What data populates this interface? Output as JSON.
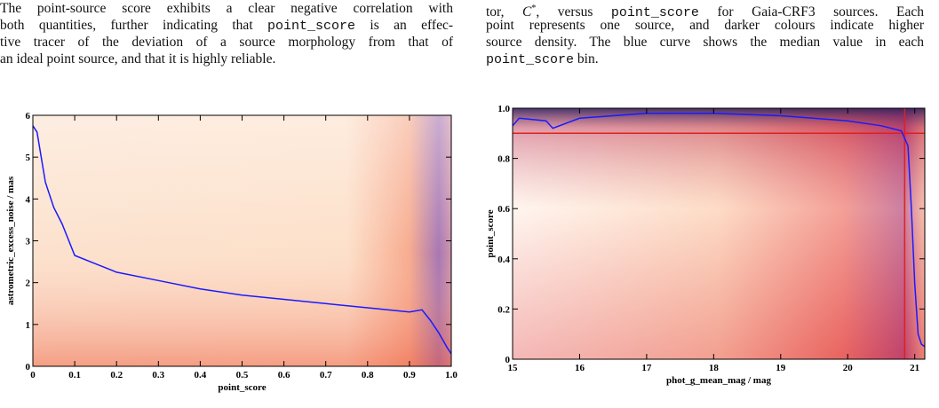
{
  "text_columns": [
    {
      "lines": [
        [
          "The point-source score exhibits a clear negative correlation with"
        ],
        [
          "both quantities, further indicating that ",
          {
            "text": "point_score",
            "mono": true
          },
          " is an effec-"
        ],
        [
          "tive tracer of the deviation of a source morphology from that of"
        ],
        [
          "an ideal point source, and that it is highly reliable."
        ]
      ]
    },
    {
      "lines": [
        [
          "tor, ",
          {
            "text": "C",
            "italic": true
          },
          {
            "text": "*",
            "sup": true
          },
          ", versus ",
          {
            "text": "point_score",
            "mono": true
          },
          " for Gaia-CRF3 sources. Each"
        ],
        [
          "point represents one source, and darker colours indicate higher"
        ],
        [
          "source density. The blue curve shows the median value in each"
        ],
        [
          {
            "text": "point_score",
            "mono": true
          },
          " bin."
        ]
      ]
    }
  ],
  "chart_data": [
    {
      "type": "density-line",
      "xlabel": "point_score",
      "ylabel": "astrometric_excess_noise / mas",
      "xlim": [
        0,
        1
      ],
      "ylim": [
        0,
        6
      ],
      "xticks": [
        0,
        0.1,
        0.2,
        0.3,
        0.4,
        0.5,
        0.6,
        0.7,
        0.8,
        0.9,
        {
          "value": 1,
          "label": "1.0"
        }
      ],
      "yticks": [
        0,
        1,
        2,
        3,
        4,
        5,
        6
      ],
      "series": [
        {
          "name": "median",
          "color": "#1a1aff",
          "x": [
            0,
            0.01,
            0.02,
            0.03,
            0.05,
            0.07,
            0.1,
            0.15,
            0.2,
            0.3,
            0.4,
            0.5,
            0.6,
            0.7,
            0.8,
            0.9,
            0.93,
            0.95,
            0.97,
            0.99,
            1.0
          ],
          "values": [
            5.75,
            5.6,
            5.0,
            4.4,
            3.8,
            3.4,
            2.65,
            2.45,
            2.25,
            2.05,
            1.85,
            1.7,
            1.6,
            1.5,
            1.4,
            1.3,
            1.35,
            1.1,
            0.8,
            0.45,
            0.3
          ]
        }
      ]
    },
    {
      "type": "density-line",
      "xlabel": "phot_g_mean_mag / mag",
      "ylabel": "point_score",
      "xlim": [
        15,
        21.15
      ],
      "ylim": [
        0,
        1
      ],
      "xticks": [
        15,
        16,
        17,
        18,
        19,
        20,
        21
      ],
      "yticks": [
        0,
        0.2,
        0.4,
        0.6,
        0.8,
        {
          "value": 1,
          "label": "1.0"
        }
      ],
      "reference_lines": {
        "x": 20.85,
        "y": 0.9,
        "color": "#e02020"
      },
      "series": [
        {
          "name": "median",
          "color": "#1a1aff",
          "x": [
            15,
            15.1,
            15.5,
            15.6,
            16,
            17,
            18,
            19,
            20,
            20.5,
            20.8,
            20.9,
            20.95,
            21.0,
            21.05,
            21.1,
            21.15
          ],
          "values": [
            0.93,
            0.96,
            0.95,
            0.92,
            0.96,
            0.98,
            0.98,
            0.97,
            0.95,
            0.93,
            0.91,
            0.85,
            0.6,
            0.3,
            0.1,
            0.06,
            0.05
          ]
        }
      ]
    }
  ]
}
